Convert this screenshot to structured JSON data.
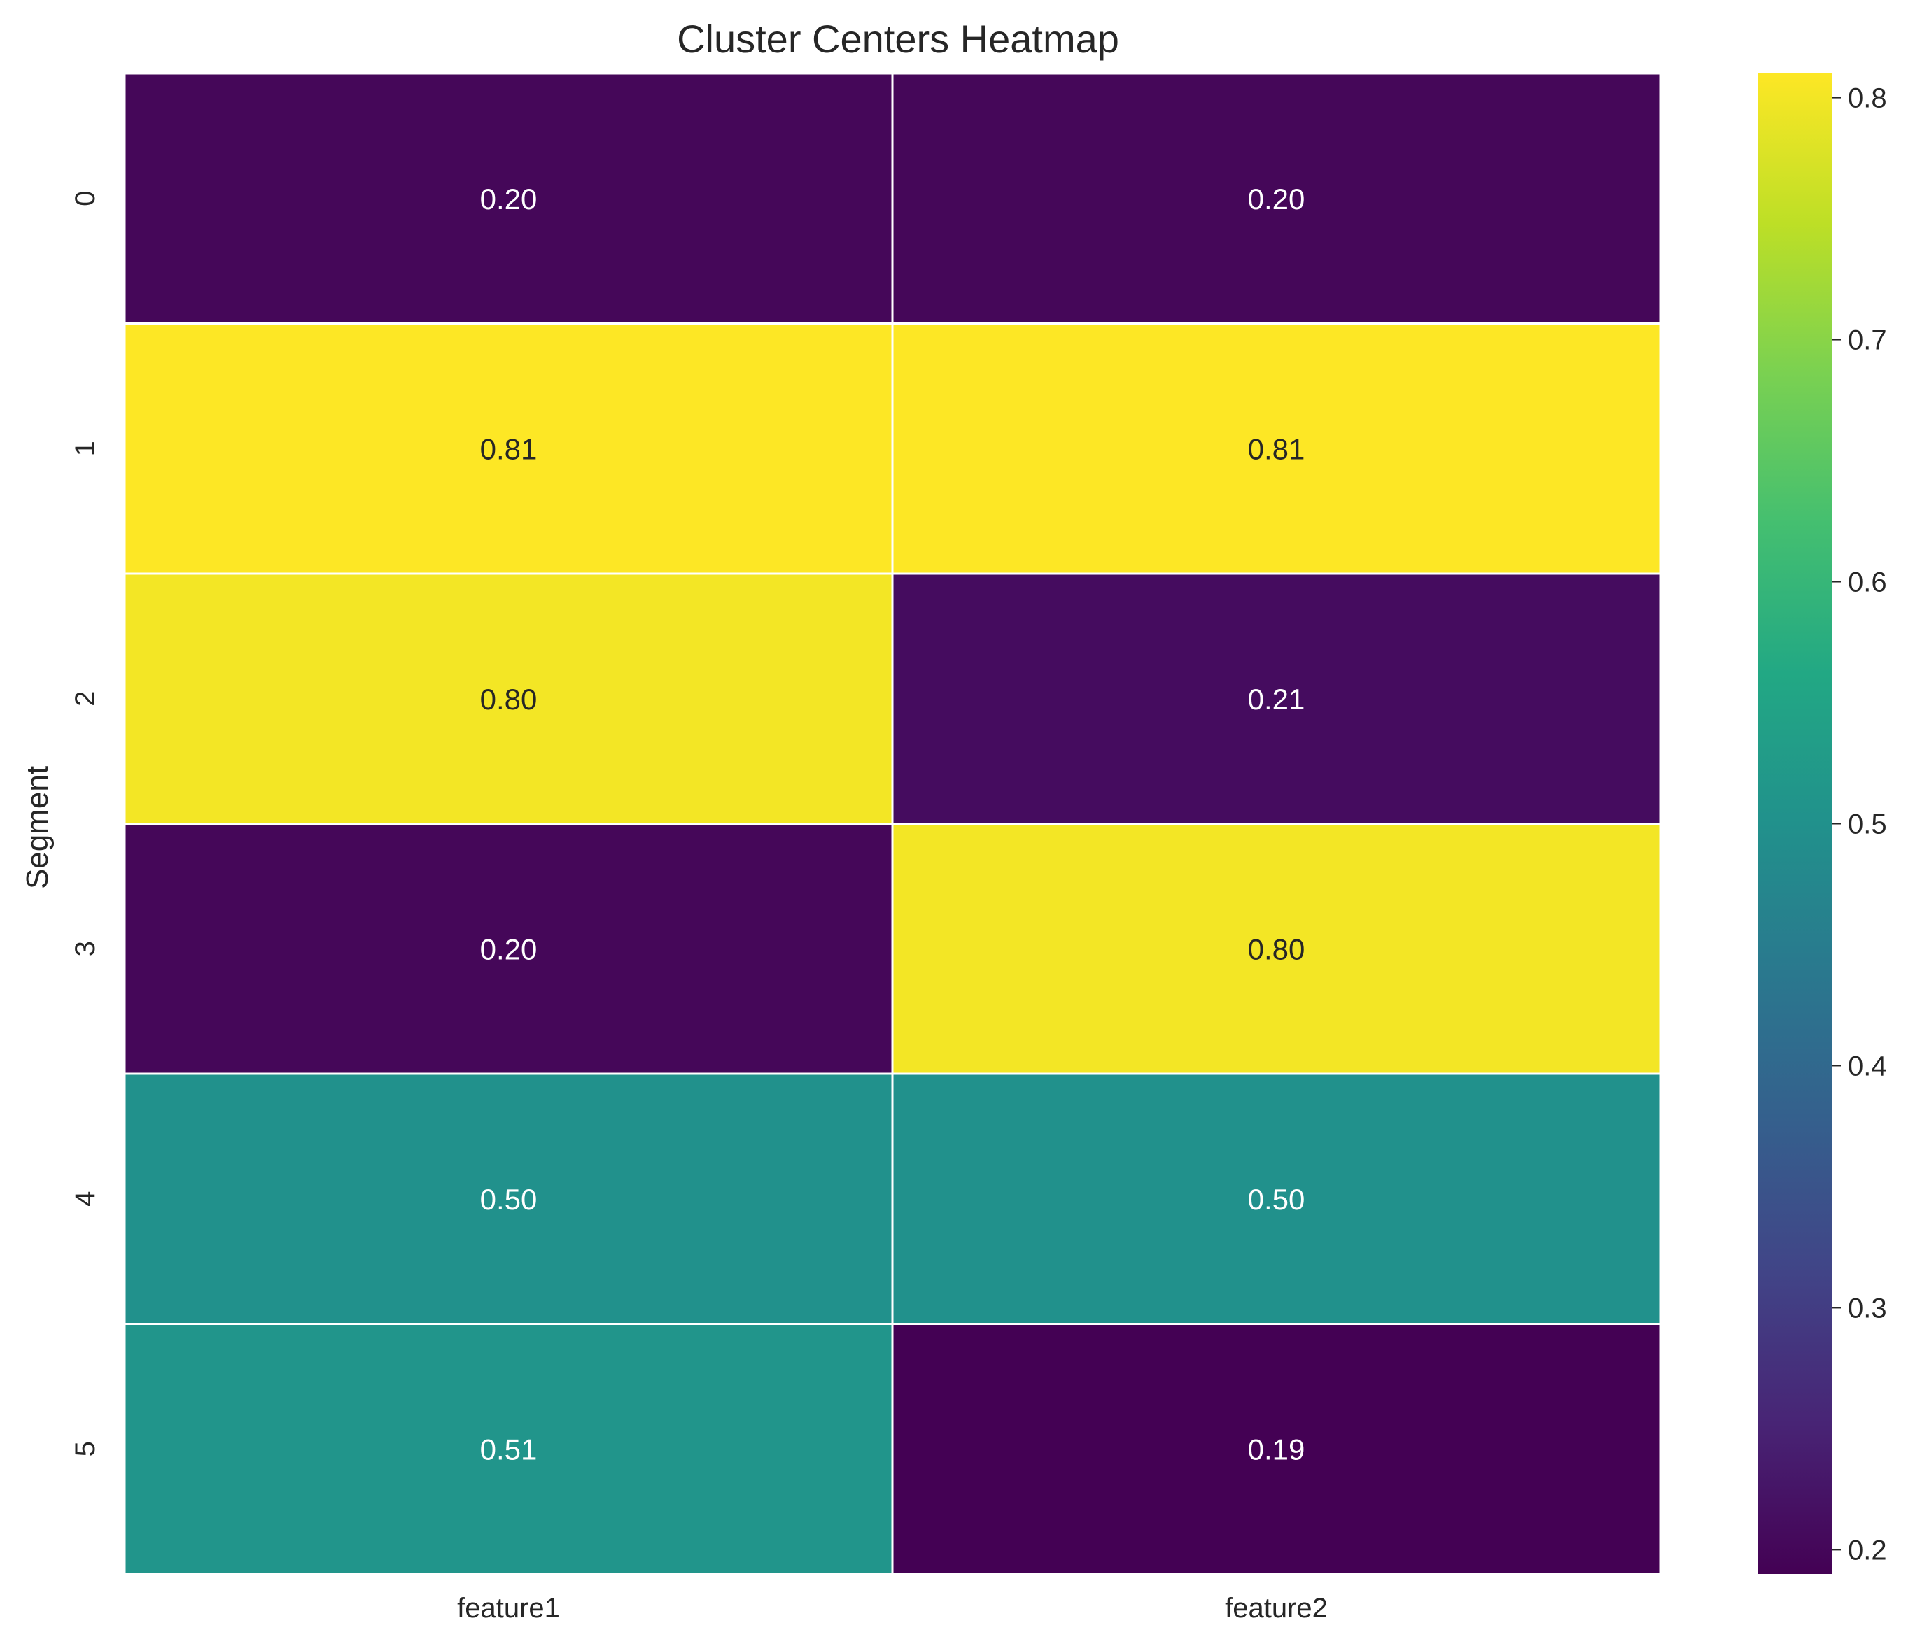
{
  "chart_data": {
    "type": "heatmap",
    "title": "Cluster Centers Heatmap",
    "xlabel": "",
    "ylabel": "Segment",
    "columns": [
      "feature1",
      "feature2"
    ],
    "rows": [
      "0",
      "1",
      "2",
      "3",
      "4",
      "5"
    ],
    "values": [
      [
        0.2,
        0.2
      ],
      [
        0.81,
        0.81
      ],
      [
        0.8,
        0.21
      ],
      [
        0.2,
        0.8
      ],
      [
        0.5,
        0.5
      ],
      [
        0.51,
        0.19
      ]
    ],
    "cell_labels": [
      [
        "0.20",
        "0.20"
      ],
      [
        "0.81",
        "0.81"
      ],
      [
        "0.80",
        "0.21"
      ],
      [
        "0.20",
        "0.80"
      ],
      [
        "0.50",
        "0.50"
      ],
      [
        "0.51",
        "0.19"
      ]
    ],
    "colormap": "viridis",
    "vmin": 0.19,
    "vmax": 0.81,
    "colorbar_ticks": [
      0.2,
      0.3,
      0.4,
      0.5,
      0.6,
      0.7,
      0.8
    ],
    "colorbar_tick_labels": [
      "0.2",
      "0.3",
      "0.4",
      "0.5",
      "0.6",
      "0.7",
      "0.8"
    ],
    "grid_line_color": "#ffffff"
  }
}
